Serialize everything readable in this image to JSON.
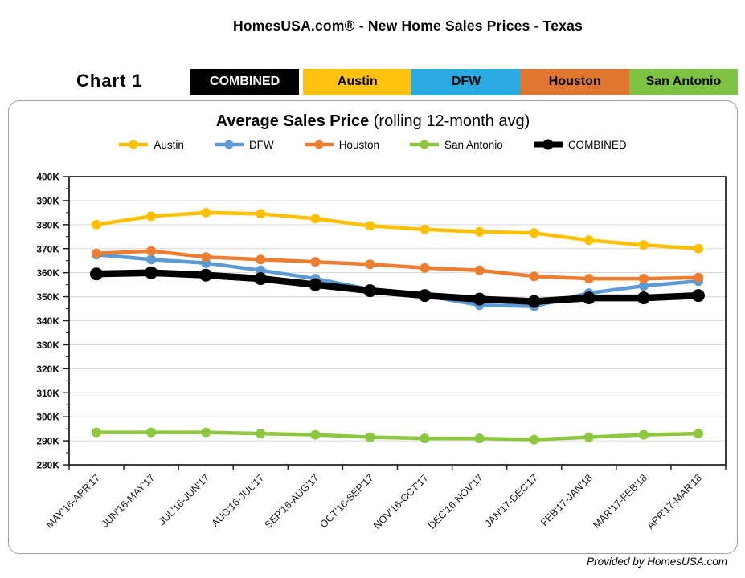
{
  "page": {
    "title": "HomesUSA.com® - New Home Sales Prices - Texas",
    "chart_label": "Chart 1",
    "footer": "Provided by HomesUSA.com"
  },
  "tabs": [
    {
      "label": "COMBINED",
      "bg": "#000000",
      "fg": "#FFFFFF"
    },
    {
      "label": "Austin",
      "bg": "#FFC20E",
      "fg": "#000000"
    },
    {
      "label": "DFW",
      "bg": "#29ABE2",
      "fg": "#000000"
    },
    {
      "label": "Houston",
      "bg": "#E0762F",
      "fg": "#000000"
    },
    {
      "label": "San Antonio",
      "bg": "#7DC242",
      "fg": "#000000"
    }
  ],
  "chart": {
    "title_bold": "Average Sales Price",
    "title_rest": " (rolling 12-month avg)"
  },
  "chart_data": {
    "type": "line",
    "title": "Average Sales Price (rolling 12-month avg)",
    "unit": "K",
    "ylim": [
      280,
      400
    ],
    "ytick_step": 10,
    "grid": true,
    "legend_position": "top",
    "categories": [
      "MAY'16-APR'17",
      "JUN'16-MAY'17",
      "JUL'16-JUN'17",
      "AUG'16-JUL'17",
      "SEP'16-AUG'17",
      "OCT'16-SEP'17",
      "NOV'16-OCT'17",
      "DEC'16-NOV'17",
      "JAN'17-DEC'17",
      "FEB'17-JAN'18",
      "MAR'17-FEB'18",
      "APR'17-MAR'18"
    ],
    "series": [
      {
        "name": "Austin",
        "color": "#FFC000",
        "line_width": 4.5,
        "values": [
          380,
          383.5,
          385,
          384.5,
          382.5,
          379.5,
          378,
          377,
          376.5,
          373.5,
          371.5,
          370
        ]
      },
      {
        "name": "DFW",
        "color": "#5B9BD5",
        "line_width": 4.5,
        "values": [
          367.5,
          365.5,
          364,
          361,
          357.5,
          353,
          350.5,
          346.5,
          346,
          351.5,
          354.5,
          356.5
        ]
      },
      {
        "name": "Houston",
        "color": "#ED7D31",
        "line_width": 4.5,
        "values": [
          368,
          369,
          366.5,
          365.5,
          364.5,
          363.5,
          362,
          361,
          358.5,
          357.5,
          357.5,
          358
        ]
      },
      {
        "name": "San Antonio",
        "color": "#8DC63F",
        "line_width": 4.5,
        "values": [
          293.5,
          293.5,
          293.5,
          293,
          292.5,
          291.5,
          291,
          291,
          290.5,
          291.5,
          292.5,
          293
        ]
      },
      {
        "name": "COMBINED",
        "color": "#000000",
        "line_width": 8.5,
        "values": [
          359.5,
          360,
          359,
          357.5,
          355,
          352.5,
          350.5,
          349,
          348,
          349.5,
          349.5,
          350.5
        ]
      }
    ],
    "axis_color": "#262626",
    "grid_color": "#D9D9D9"
  }
}
